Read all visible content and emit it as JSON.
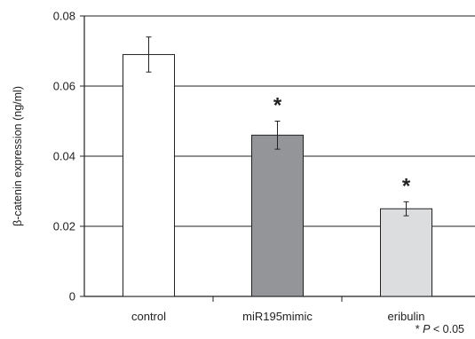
{
  "chart_data": {
    "type": "bar",
    "categories": [
      "control",
      "miR195mimic",
      "eribulin"
    ],
    "values": [
      0.069,
      0.046,
      0.025
    ],
    "errors": [
      0.005,
      0.004,
      0.002
    ],
    "bar_colors": [
      "#ffffff",
      "#939598",
      "#dcdddf"
    ],
    "significance": [
      "",
      "*",
      "*"
    ],
    "ylabel": "β-catenin expression (ng/ml)",
    "xlabel": "",
    "ylim": [
      0,
      0.08
    ],
    "yticks": [
      0,
      0.02,
      0.04,
      0.06,
      0.08
    ],
    "ytick_labels": [
      "0",
      "0.02",
      "0.04",
      "0.06",
      "0.08"
    ],
    "grid": true
  },
  "footnote": {
    "star": "*",
    "p_label": "P",
    "condition": "< 0.05"
  }
}
